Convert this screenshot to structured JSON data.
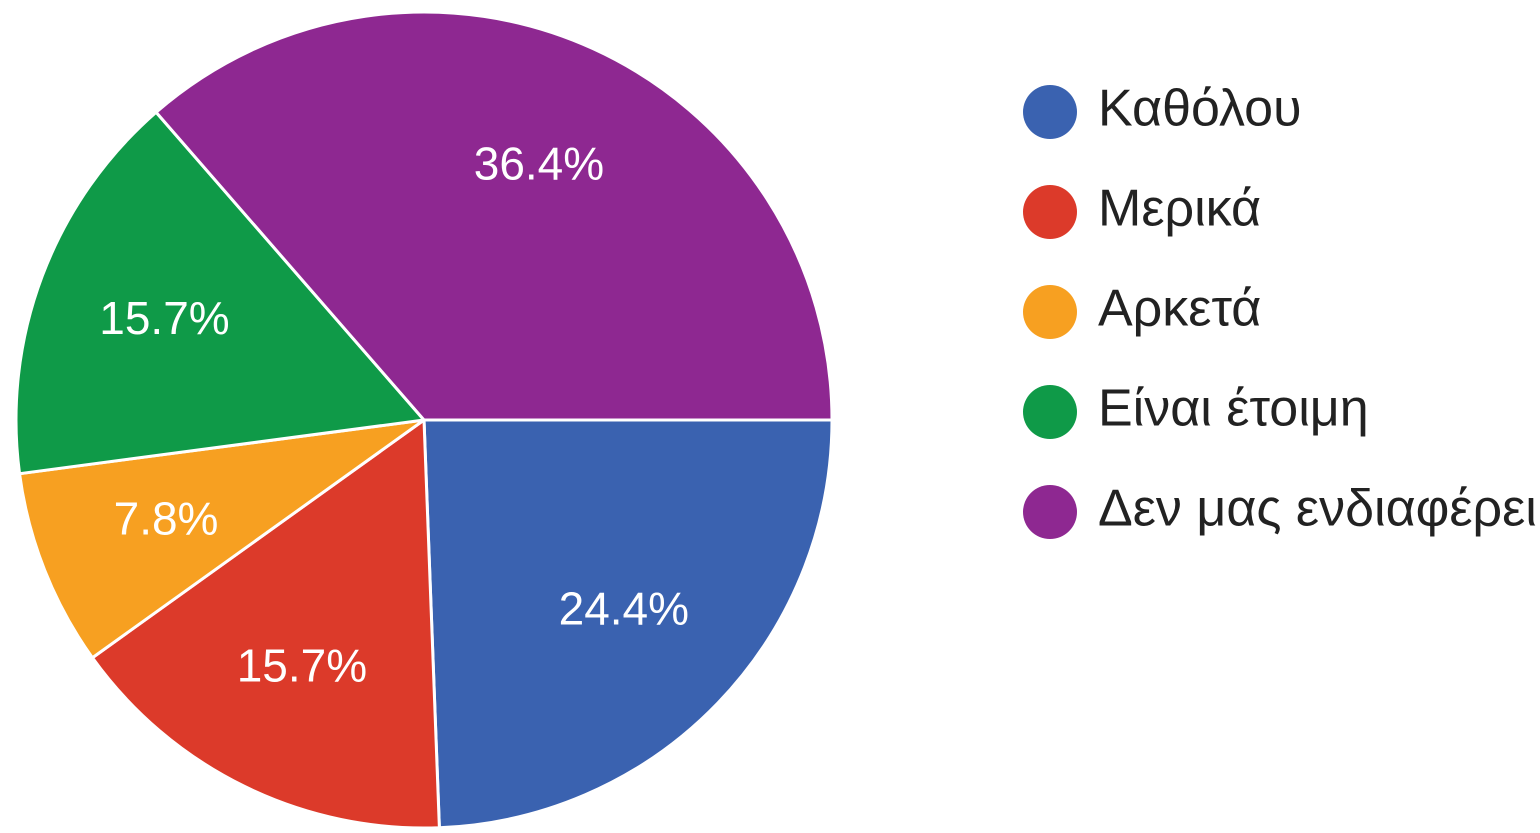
{
  "chart_data": {
    "type": "pie",
    "categories": [
      "Καθόλου",
      "Μερικά",
      "Αρκετά",
      "Είναι έτοιμη",
      "Δεν μας ενδιαφέρει"
    ],
    "values": [
      24.4,
      15.7,
      7.8,
      15.7,
      36.4
    ],
    "value_labels": [
      "24.4%",
      "15.7%",
      "7.8%",
      "15.7%",
      "36.4%"
    ],
    "colors": [
      "#3a62b0",
      "#dc3a2a",
      "#f7a021",
      "#0f9a48",
      "#8e2891"
    ]
  }
}
